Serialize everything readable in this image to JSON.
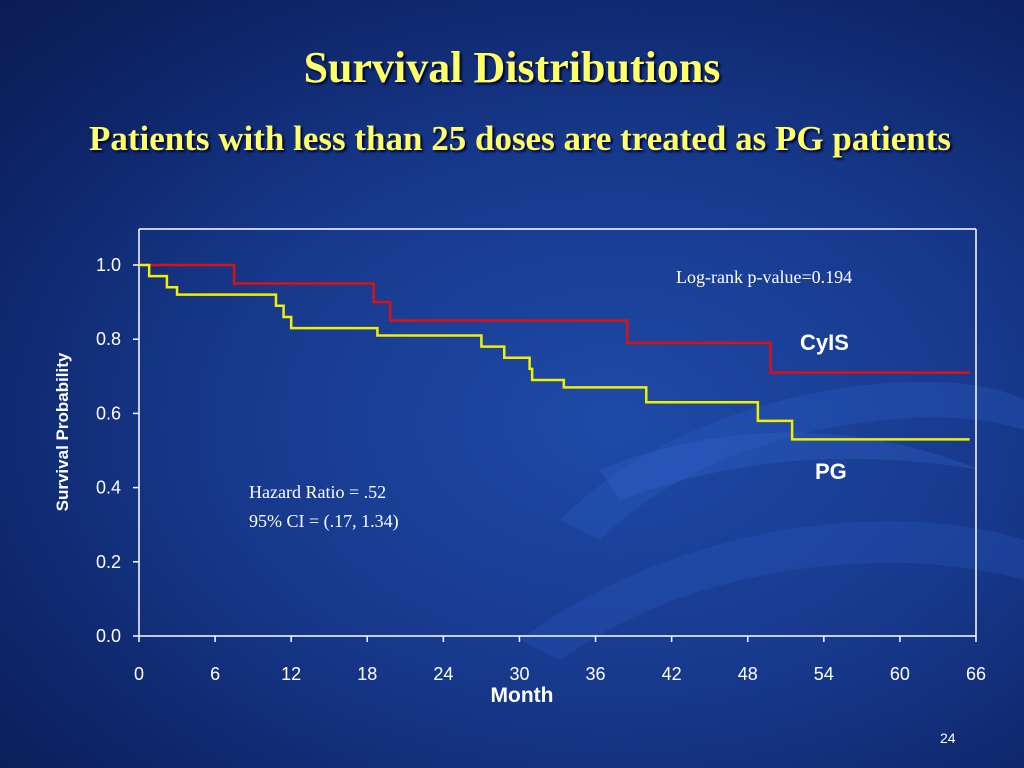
{
  "slide": {
    "title": "Survival Distributions",
    "subtitle": "Patients with less than 25 doses are treated as PG patients",
    "slide_number": "24"
  },
  "colors": {
    "cyls": "#dd1111",
    "pg": "#f0f000",
    "text_yellow": "#ffff66",
    "axis": "#ffffff"
  },
  "chart_data": {
    "type": "line",
    "step": true,
    "title": "",
    "xlabel": "Month",
    "ylabel": "Survival Probability",
    "xlim": [
      0,
      66
    ],
    "ylim": [
      0.0,
      1.0
    ],
    "x_ticks": [
      0,
      6,
      12,
      18,
      24,
      30,
      36,
      42,
      48,
      54,
      60,
      66
    ],
    "y_ticks": [
      "0.0",
      "0.2",
      "0.4",
      "0.6",
      "0.8",
      "1.0"
    ],
    "grid": false,
    "series": [
      {
        "name": "CyIS",
        "color": "#dd1111",
        "x": [
          0,
          7.5,
          18.5,
          19.8,
          38.5,
          49.8,
          65.5
        ],
        "y": [
          1.0,
          0.95,
          0.9,
          0.85,
          0.79,
          0.71,
          0.71
        ]
      },
      {
        "name": "PG",
        "color": "#f0f000",
        "x": [
          0,
          0.8,
          2.2,
          3.0,
          10.8,
          11.4,
          12.0,
          18.8,
          27.0,
          28.8,
          30.8,
          31.0,
          33.5,
          40.0,
          48.8,
          51.5,
          65.5
        ],
        "y": [
          1.0,
          0.97,
          0.94,
          0.92,
          0.89,
          0.86,
          0.83,
          0.81,
          0.78,
          0.75,
          0.72,
          0.69,
          0.67,
          0.63,
          0.58,
          0.53,
          0.53
        ]
      }
    ],
    "annotations": {
      "log_rank": "Log-rank p-value=0.194",
      "hazard_ratio": "Hazard Ratio = .52",
      "ci": "95% CI = (.17, 1.34)"
    }
  }
}
